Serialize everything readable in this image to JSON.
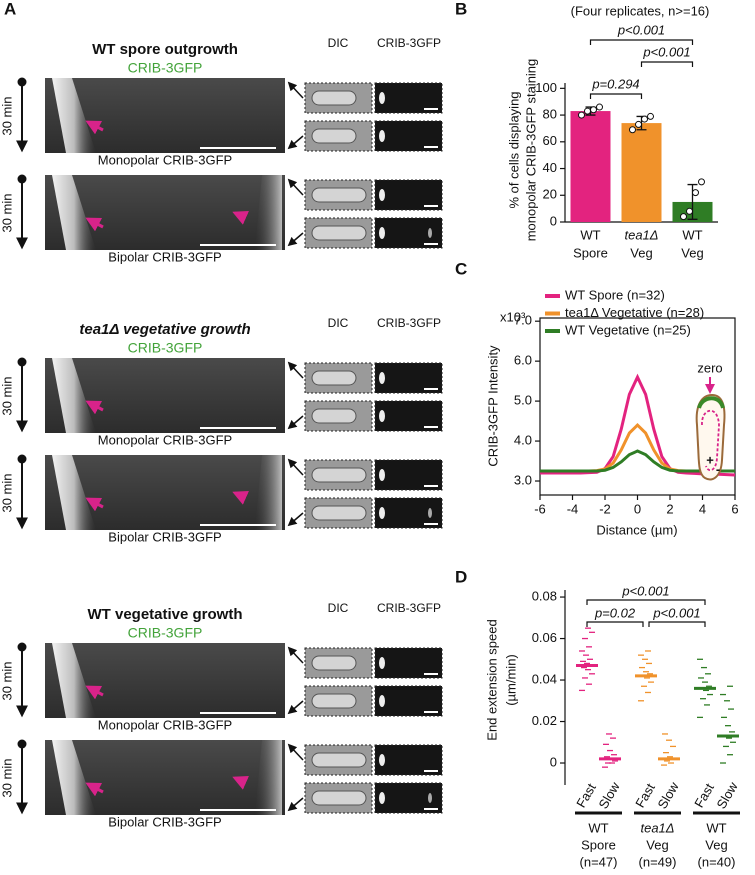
{
  "panel_a": {
    "label": "A",
    "time_label": "30 min",
    "image_headers": [
      "DIC",
      "CRIB-3GFP"
    ],
    "groups": [
      {
        "title": "WT spore outgrowth",
        "marker": "CRIB-3GFP",
        "kymographs": [
          "Monopolar CRIB-3GFP",
          "Bipolar CRIB-3GFP"
        ]
      },
      {
        "title": "tea1Δ vegetative growth",
        "marker": "CRIB-3GFP",
        "kymographs": [
          "Monopolar CRIB-3GFP",
          "Bipolar CRIB-3GFP"
        ]
      },
      {
        "title": "WT vegetative growth",
        "marker": "CRIB-3GFP",
        "kymographs": [
          "Monopolar CRIB-3GFP",
          "Bipolar CRIB-3GFP"
        ]
      }
    ]
  },
  "chart_data": [
    {
      "type": "bar",
      "panel": "B",
      "subtitle": "(Four replicates, n>=16)",
      "ylabel": [
        "% of cells displaying",
        "monopolar CRIB-3GFP staining"
      ],
      "categories": [
        [
          "WT",
          "Spore"
        ],
        [
          "tea1Δ",
          "Veg"
        ],
        [
          "WT",
          "Veg"
        ]
      ],
      "values": [
        83,
        74,
        15
      ],
      "errors": [
        3,
        5,
        13
      ],
      "points": [
        [
          80,
          83,
          84,
          86
        ],
        [
          69,
          73,
          77,
          79
        ],
        [
          4,
          8,
          22,
          30
        ]
      ],
      "colors": [
        "#e3237f",
        "#f0922b",
        "#2f7d25"
      ],
      "ylim": [
        0,
        104
      ],
      "yticks": [
        0,
        20,
        40,
        60,
        80,
        100
      ],
      "significance": [
        "p<0.001",
        "p<0.001",
        "p=0.294"
      ]
    },
    {
      "type": "line",
      "panel": "C",
      "ylabel": "CRIB-3GFP Intensity",
      "y_scale_label": "x10³",
      "xlabel": "Distance (µm)",
      "x": [
        -6,
        -5.5,
        -5,
        -4.5,
        -4,
        -3.5,
        -3,
        -2.5,
        -2,
        -1.5,
        -1,
        -0.5,
        0,
        0.5,
        1,
        1.5,
        2,
        2.5,
        3,
        3.5,
        4,
        4.5,
        5,
        5.5,
        6
      ],
      "series": [
        {
          "name": "WT Spore (n=32)",
          "color": "#e3237f",
          "values": [
            3.2,
            3.2,
            3.2,
            3.2,
            3.2,
            3.2,
            3.21,
            3.22,
            3.31,
            3.61,
            4.3,
            5.17,
            5.6,
            5.17,
            4.3,
            3.61,
            3.31,
            3.22,
            3.2,
            3.19,
            3.18,
            3.18,
            3.17,
            3.16,
            3.15
          ]
        },
        {
          "name": "tea1Δ Vegetative (n=28)",
          "color": "#f0922b",
          "values": [
            3.25,
            3.25,
            3.25,
            3.25,
            3.25,
            3.25,
            3.25,
            3.26,
            3.3,
            3.45,
            3.78,
            4.2,
            4.4,
            4.2,
            3.78,
            3.45,
            3.3,
            3.26,
            3.25,
            3.25,
            3.25,
            3.25,
            3.25,
            3.25,
            3.25
          ]
        },
        {
          "name": "WT Vegetative (n=25)",
          "color": "#2f7d25",
          "values": [
            3.25,
            3.25,
            3.25,
            3.25,
            3.25,
            3.25,
            3.25,
            3.25,
            3.27,
            3.34,
            3.48,
            3.66,
            3.75,
            3.66,
            3.48,
            3.34,
            3.27,
            3.25,
            3.25,
            3.25,
            3.25,
            3.25,
            3.25,
            3.25,
            3.25
          ]
        }
      ],
      "xlim": [
        -6,
        6
      ],
      "xticks": [
        -6,
        -4,
        -2,
        0,
        2,
        4,
        6
      ],
      "ylim": [
        2.65,
        7.08
      ],
      "yticks": [
        {
          "value": 3,
          "label": "3.0"
        },
        {
          "value": 4,
          "label": "4.0"
        },
        {
          "value": 5,
          "label": "5.0"
        },
        {
          "value": 6,
          "label": "6.0"
        },
        {
          "value": 7,
          "label": "7.0"
        }
      ],
      "annotations": [
        "zero",
        "+",
        "-"
      ]
    },
    {
      "type": "strip",
      "panel": "D",
      "ylabel": [
        "End extension speed",
        "(µm/min)"
      ],
      "categories": [
        "Fast",
        "Slow"
      ],
      "groups": [
        {
          "label": [
            "WT",
            "Spore",
            "(n=47)"
          ],
          "color": "#e3237f",
          "medians": [
            0.047,
            0.002
          ],
          "points": [
            [
              0.035,
              0.038,
              0.041,
              0.043,
              0.045,
              0.046,
              0.047,
              0.048,
              0.049,
              0.05,
              0.052,
              0.054,
              0.056,
              0.06,
              0.063,
              0.065
            ],
            [
              -0.002,
              0,
              0,
              0.001,
              0.002,
              0.003,
              0.004,
              0.006,
              0.009,
              0.012,
              0.014
            ]
          ]
        },
        {
          "label": [
            "tea1Δ",
            "Veg",
            "(n=49)"
          ],
          "color": "#f0922b",
          "medians": [
            0.042,
            0.002
          ],
          "points": [
            [
              0.03,
              0.034,
              0.037,
              0.039,
              0.041,
              0.042,
              0.043,
              0.044,
              0.046,
              0.048,
              0.05,
              0.052,
              0.054
            ],
            [
              -0.001,
              0,
              0.001,
              0.002,
              0.003,
              0.005,
              0.008,
              0.011,
              0.014
            ]
          ]
        },
        {
          "label": [
            "WT",
            "Veg",
            "(n=40)"
          ],
          "color": "#2f7d25",
          "medians": [
            0.036,
            0.013
          ],
          "points": [
            [
              0.022,
              0.028,
              0.031,
              0.033,
              0.035,
              0.036,
              0.037,
              0.039,
              0.041,
              0.043,
              0.046,
              0.05
            ],
            [
              0,
              0.004,
              0.008,
              0.01,
              0.012,
              0.013,
              0.015,
              0.018,
              0.022,
              0.026,
              0.03,
              0.033,
              0.037
            ]
          ]
        }
      ],
      "ylim": [
        -0.0106,
        0.0834
      ],
      "yticks": [
        0,
        0.02,
        0.04,
        0.06,
        0.08
      ],
      "significance": [
        "p<0.001",
        "p=0.02",
        "p<0.001"
      ]
    }
  ]
}
